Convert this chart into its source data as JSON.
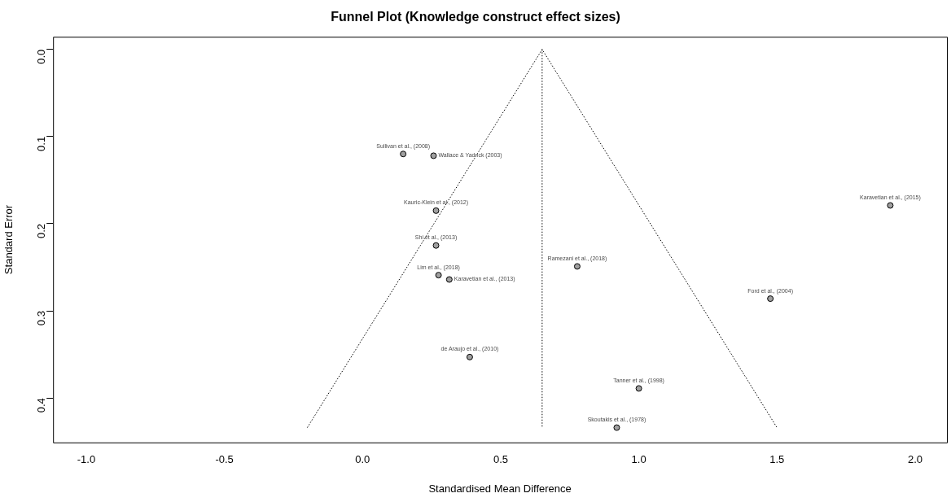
{
  "chart_data": {
    "type": "scatter",
    "title": "Funnel Plot (Knowledge construct effect sizes)",
    "xlabel": "Standardised Mean Difference",
    "ylabel": "Standard Error",
    "xlim": [
      -1.12,
      2.115
    ],
    "xticks": [
      {
        "value": -1,
        "label": "-1.0"
      },
      {
        "value": -0.5,
        "label": "-0.5"
      },
      {
        "value": 0,
        "label": "0.0"
      },
      {
        "value": 0.5,
        "label": "0.5"
      },
      {
        "value": 1,
        "label": "1.0"
      },
      {
        "value": 1.5,
        "label": "1.5"
      },
      {
        "value": 2,
        "label": "2.0"
      }
    ],
    "ylim": [
      0.451,
      -0.0145
    ],
    "yticks": [
      {
        "value": 0,
        "label": "0.0"
      },
      {
        "value": 0.1,
        "label": "0.1"
      },
      {
        "value": 0.2,
        "label": "0.2"
      },
      {
        "value": 0.3,
        "label": "0.3"
      },
      {
        "value": 0.4,
        "label": "0.4"
      }
    ],
    "grid": false,
    "legend": false,
    "marker": "circle",
    "series": [
      {
        "type": "scatter",
        "color": "#a0a0a0",
        "x": [
          0.147,
          0.257,
          0.266,
          0.266,
          0.275,
          0.314,
          0.777,
          1.476,
          1.91,
          0.388,
          1.0,
          0.92
        ],
        "values": [
          0.12,
          0.122,
          0.185,
          0.225,
          0.259,
          0.264,
          0.249,
          0.286,
          0.179,
          0.353,
          0.389,
          0.434
        ]
      },
      {
        "type": "line",
        "color": "#000000",
        "line_style": "dotted",
        "marker": "none",
        "x": [
          -0.2,
          0.65,
          1.5
        ],
        "values": [
          0.434,
          0,
          0.434
        ]
      },
      {
        "type": "line",
        "color": "#000000",
        "line_style": "dotted",
        "marker": "none",
        "x": [
          0.65,
          0.65
        ],
        "values": [
          0,
          0.434
        ]
      }
    ],
    "annotations": [
      {
        "text": "Sullivan et al., (2008)",
        "x": 0.147,
        "y": 0.12
      },
      {
        "text": "Wallace & Yadrick (2003)",
        "x": 0.257,
        "y": 0.122
      },
      {
        "text": "Kauric-Klein et al., (2012)",
        "x": 0.266,
        "y": 0.185
      },
      {
        "text": "Shi et al., (2013)",
        "x": 0.266,
        "y": 0.225
      },
      {
        "text": "Lim et al., (2018)",
        "x": 0.275,
        "y": 0.259
      },
      {
        "text": "Karavetian et al., (2013)",
        "x": 0.314,
        "y": 0.264
      },
      {
        "text": "Ramezani et al., (2018)",
        "x": 0.777,
        "y": 0.249
      },
      {
        "text": "Ford et al., (2004)",
        "x": 1.476,
        "y": 0.286
      },
      {
        "text": "Karavetian et al., (2015)",
        "x": 1.91,
        "y": 0.179
      },
      {
        "text": "de Araujo et al., (2010)",
        "x": 0.388,
        "y": 0.353
      },
      {
        "text": "Tanner et al., (1998)",
        "x": 1.0,
        "y": 0.389
      },
      {
        "text": "Skoutakis et al., (1978)",
        "x": 0.92,
        "y": 0.434
      }
    ]
  }
}
